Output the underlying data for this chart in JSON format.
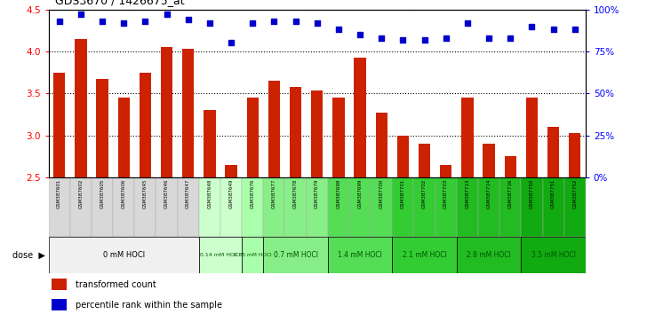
{
  "title": "GDS3670 / 1426675_at",
  "samples": [
    "GSM387601",
    "GSM387602",
    "GSM387605",
    "GSM387606",
    "GSM387645",
    "GSM387646",
    "GSM387647",
    "GSM387648",
    "GSM387649",
    "GSM387676",
    "GSM387677",
    "GSM387678",
    "GSM387679",
    "GSM387698",
    "GSM387699",
    "GSM387700",
    "GSM387701",
    "GSM387702",
    "GSM387703",
    "GSM387713",
    "GSM387714",
    "GSM387716",
    "GSM387750",
    "GSM387751",
    "GSM387752"
  ],
  "transformed_counts": [
    3.75,
    4.15,
    3.67,
    3.45,
    3.75,
    4.05,
    4.03,
    3.3,
    2.65,
    3.45,
    3.65,
    3.58,
    3.53,
    3.45,
    3.93,
    3.27,
    3.0,
    2.9,
    2.65,
    3.45,
    2.9,
    2.75,
    3.45,
    3.1,
    3.03
  ],
  "percentile_ranks": [
    93,
    97,
    93,
    92,
    93,
    97,
    94,
    92,
    80,
    92,
    93,
    93,
    92,
    88,
    85,
    83,
    82,
    82,
    83,
    92,
    83,
    83,
    90,
    88,
    88
  ],
  "dose_groups": [
    {
      "label": "0 mM HOCl",
      "start": 0,
      "end": 7,
      "bg": "#f0f0f0",
      "fg": "#000000",
      "fs": 6.0
    },
    {
      "label": "0.14 mM HOCl",
      "start": 7,
      "end": 9,
      "bg": "#ccffcc",
      "fg": "#005500",
      "fs": 4.5
    },
    {
      "label": "0.35 mM HOCl",
      "start": 9,
      "end": 10,
      "bg": "#aaffaa",
      "fg": "#005500",
      "fs": 4.2
    },
    {
      "label": "0.7 mM HOCl",
      "start": 10,
      "end": 13,
      "bg": "#88ee88",
      "fg": "#005500",
      "fs": 5.5
    },
    {
      "label": "1.4 mM HOCl",
      "start": 13,
      "end": 16,
      "bg": "#55dd55",
      "fg": "#005500",
      "fs": 5.5
    },
    {
      "label": "2.1 mM HOCl",
      "start": 16,
      "end": 19,
      "bg": "#33cc33",
      "fg": "#005500",
      "fs": 5.5
    },
    {
      "label": "2.8 mM HOCl",
      "start": 19,
      "end": 22,
      "bg": "#22bb22",
      "fg": "#005500",
      "fs": 5.5
    },
    {
      "label": "3.5 mM HOCl",
      "start": 22,
      "end": 25,
      "bg": "#11aa11",
      "fg": "#005500",
      "fs": 5.5
    }
  ],
  "sample_bg": [
    "#d8d8d8",
    "#d8d8d8",
    "#d8d8d8",
    "#d8d8d8",
    "#d8d8d8",
    "#d8d8d8",
    "#d8d8d8",
    "#ccffcc",
    "#ccffcc",
    "#aaffaa",
    "#88ee88",
    "#88ee88",
    "#88ee88",
    "#55dd55",
    "#55dd55",
    "#55dd55",
    "#33cc33",
    "#33cc33",
    "#33cc33",
    "#22bb22",
    "#22bb22",
    "#22bb22",
    "#11aa11",
    "#11aa11",
    "#11aa11"
  ],
  "ylim": [
    2.5,
    4.5
  ],
  "bar_color": "#cc2200",
  "dot_color": "#0000cc",
  "bg_color": "#ffffff"
}
